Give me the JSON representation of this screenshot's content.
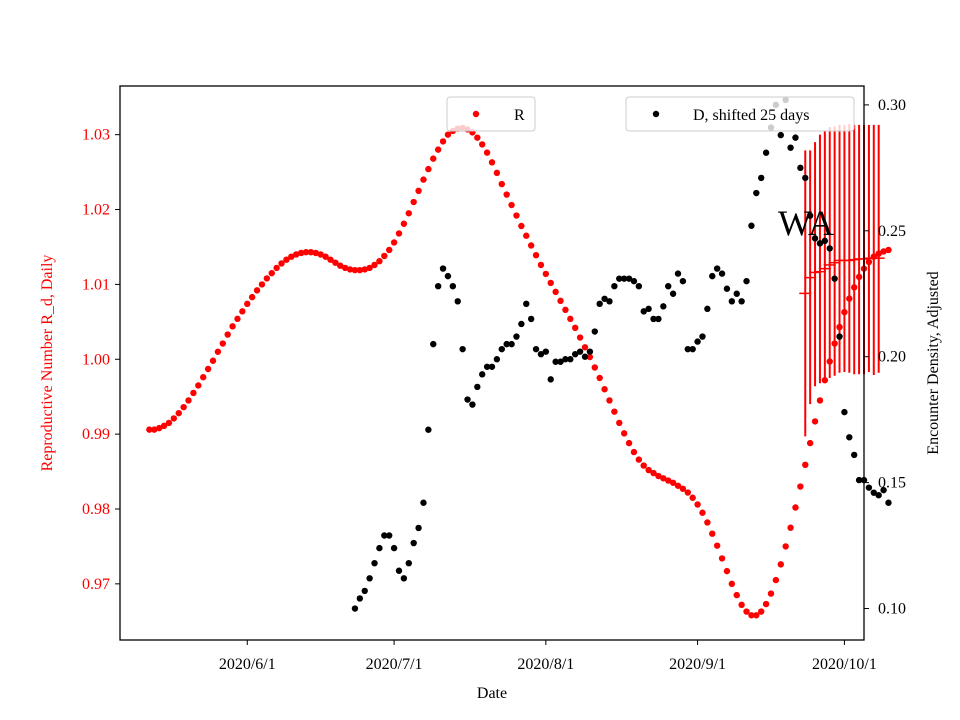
{
  "chart_data": {
    "type": "scatter",
    "title": "",
    "annotation": "WA",
    "xlabel": "Date",
    "ylabel_left": "Reproductive Number R_d, Daily",
    "ylabel_right": "Encounter Density, Adjusted",
    "x_ticks": [
      {
        "label": "2020/6/1",
        "day": 0
      },
      {
        "label": "2020/7/1",
        "day": 30
      },
      {
        "label": "2020/8/1",
        "day": 61
      },
      {
        "label": "2020/9/1",
        "day": 92
      },
      {
        "label": "2020/10/1",
        "day": 122
      }
    ],
    "xlim_days": [
      -26,
      126
    ],
    "ylim_left": [
      0.9625,
      1.0365
    ],
    "ylim_right": [
      0.0875,
      0.3075
    ],
    "y_ticks_left": [
      "0.97",
      "0.98",
      "0.99",
      "1.00",
      "1.01",
      "1.02",
      "1.03"
    ],
    "y_ticks_right": [
      "0.10",
      "0.15",
      "0.20",
      "0.25",
      "0.30"
    ],
    "legend": [
      {
        "label": "R",
        "color": "#ff0000",
        "placement": "upper-center"
      },
      {
        "label": "D, shifted 25 days",
        "color": "#000000",
        "placement": "upper-right"
      }
    ],
    "colors": {
      "R": "#ff0000",
      "D": "#000000",
      "left_axis": "#ff0000",
      "right_axis": "#000000"
    },
    "series": [
      {
        "name": "R",
        "axis": "left",
        "x_start_day": -20,
        "values": [
          0.9906,
          0.9906,
          0.9908,
          0.9911,
          0.9915,
          0.9921,
          0.9928,
          0.9936,
          0.9945,
          0.9955,
          0.9965,
          0.9976,
          0.9987,
          0.9998,
          1.001,
          1.0021,
          1.0033,
          1.0044,
          1.0054,
          1.0064,
          1.0074,
          1.0083,
          1.0092,
          1.01,
          1.0108,
          1.0115,
          1.0122,
          1.0128,
          1.0133,
          1.0137,
          1.014,
          1.0142,
          1.0143,
          1.0143,
          1.0142,
          1.014,
          1.0137,
          1.0133,
          1.0129,
          1.0125,
          1.0122,
          1.012,
          1.0119,
          1.0119,
          1.012,
          1.0122,
          1.0126,
          1.0131,
          1.0138,
          1.0146,
          1.0156,
          1.0168,
          1.0181,
          1.0195,
          1.021,
          1.0225,
          1.024,
          1.0254,
          1.0268,
          1.028,
          1.0291,
          1.03,
          1.0305,
          1.0308,
          1.0309,
          1.0307,
          1.0303,
          1.0296,
          1.0287,
          1.0276,
          1.0263,
          1.0249,
          1.0234,
          1.022,
          1.0206,
          1.0192,
          1.0178,
          1.0165,
          1.0152,
          1.0139,
          1.0126,
          1.0114,
          1.0102,
          1.009,
          1.0078,
          1.0066,
          1.0054,
          1.0042,
          1.0029,
          1.0016,
          1.0003,
          0.9989,
          0.9975,
          0.996,
          0.9945,
          0.993,
          0.9915,
          0.9901,
          0.9888,
          0.9876,
          0.9866,
          0.9858,
          0.9852,
          0.9848,
          0.9844,
          0.9841,
          0.9838,
          0.9835,
          0.9831,
          0.9827,
          0.9822,
          0.9815,
          0.9806,
          0.9795,
          0.9782,
          0.9767,
          0.9751,
          0.9734,
          0.9717,
          0.97,
          0.9685,
          0.9672,
          0.9663,
          0.9658,
          0.9658,
          0.9663,
          0.9673,
          0.9687,
          0.9705,
          0.9726,
          0.975,
          0.9775,
          0.9802,
          0.983,
          0.9859,
          0.9888,
          0.9917,
          0.9945,
          0.9972,
          0.9997,
          1.0021,
          1.0043,
          1.0063,
          1.0081,
          1.0096,
          1.011,
          1.0121,
          1.013,
          1.0137,
          1.0141,
          1.0144,
          1.0146
        ]
      },
      {
        "name": "D, shifted 25 days",
        "axis": "right",
        "x_start_day": 22,
        "values": [
          0.1,
          0.104,
          0.107,
          0.112,
          0.118,
          0.124,
          0.129,
          0.129,
          0.124,
          0.115,
          0.112,
          0.118,
          0.126,
          0.132,
          0.142,
          0.171,
          0.205,
          0.228,
          0.235,
          0.232,
          0.228,
          0.222,
          0.203,
          0.183,
          0.181,
          0.188,
          0.193,
          0.196,
          0.196,
          0.199,
          0.203,
          0.205,
          0.205,
          0.208,
          0.213,
          0.221,
          0.215,
          0.203,
          0.201,
          0.202,
          0.191,
          0.198,
          0.198,
          0.199,
          0.199,
          0.201,
          0.202,
          0.2,
          0.202,
          0.21,
          0.221,
          0.223,
          0.222,
          0.228,
          0.231,
          0.231,
          0.231,
          0.23,
          0.228,
          0.218,
          0.219,
          0.215,
          0.215,
          0.22,
          0.228,
          0.225,
          0.233,
          0.23,
          0.203,
          0.203,
          0.206,
          0.208,
          0.219,
          0.232,
          0.235,
          0.233,
          0.227,
          0.222,
          0.225,
          0.222,
          0.23,
          0.252,
          0.265,
          0.271,
          0.281,
          0.291,
          0.3,
          0.288,
          0.302,
          0.283,
          0.287,
          0.275,
          0.271,
          0.256,
          0.247,
          0.245,
          0.246,
          0.243,
          0.231,
          0.208,
          0.178,
          0.168,
          0.161,
          0.151,
          0.151,
          0.148,
          0.146,
          0.145,
          0.147,
          0.142
        ]
      },
      {
        "name": "R error bars",
        "axis": "left",
        "x_start_day": 114,
        "centers": [
          1.0088,
          1.0109,
          1.0116,
          1.0117,
          1.0121,
          1.0126,
          1.0129,
          1.0132,
          1.0132,
          1.0132,
          1.0133,
          1.0134,
          1.0134,
          1.0135,
          1.0135,
          1.0135
        ],
        "lower": [
          0.9897,
          0.994,
          0.9964,
          0.9968,
          0.997,
          0.9975,
          0.9978,
          0.9982,
          0.9983,
          0.9982,
          0.998,
          0.998,
          0.998,
          0.9983,
          0.9979,
          0.9982
        ],
        "upper": [
          1.0279,
          1.0279,
          1.029,
          1.03,
          1.0305,
          1.031,
          1.0311,
          1.0313,
          1.0313,
          1.0314,
          1.0313,
          1.0313,
          1.0313,
          1.0313,
          1.0313,
          1.0313
        ]
      }
    ]
  }
}
